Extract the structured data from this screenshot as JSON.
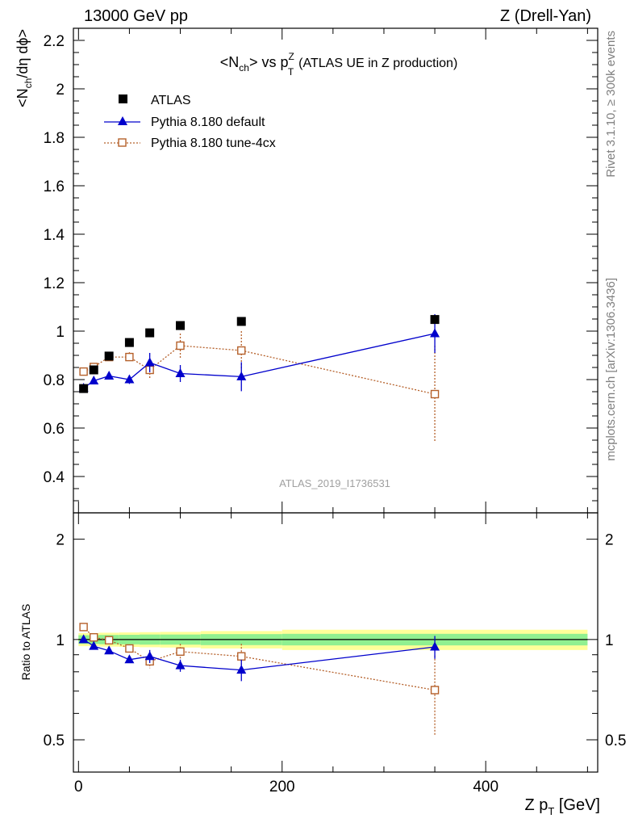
{
  "header": {
    "left": "13000 GeV pp",
    "right": "Z (Drell-Yan)"
  },
  "title": {
    "main": "<N",
    "main_sub": "ch",
    "main_rest": "> vs p",
    "pt_sup": "Z",
    "pt_sub": "T",
    "note": "(ATLAS UE in Z production)"
  },
  "side": {
    "rivet": "Rivet 3.1.10, ≥ 300k events",
    "mcplots": "mcplots.cern.ch [arXiv:1306.3436]"
  },
  "watermark": "ATLAS_2019_I1736531",
  "ylabel_top": {
    "a": "<N",
    "sub": "ch",
    "b": "/dη dϕ>"
  },
  "ylabel_bottom": "Ratio to ATLAS",
  "xlabel": {
    "a": "Z p",
    "sub": "T",
    "b": " [GeV]"
  },
  "legend": [
    "ATLAS",
    "Pythia 8.180 default",
    "Pythia 8.180 tune-4cx"
  ],
  "colors": {
    "data": "#000000",
    "default": "#0000cc",
    "tune4cx": "#b5602a",
    "band_inner": "#90f090",
    "band_outer": "#ffff99"
  },
  "chart_data": [
    {
      "type": "scatter",
      "panel": "main",
      "xlim": [
        -5,
        510
      ],
      "ylim": [
        0.25,
        2.25
      ],
      "y_ticks": [
        0.4,
        0.6,
        0.8,
        1,
        1.2,
        1.4,
        1.6,
        1.8,
        2,
        2.2
      ],
      "y_tick_labels": [
        "0.4",
        "0.6",
        "0.8",
        "1",
        "1.2",
        "1.4",
        "1.6",
        "1.8",
        "2",
        "2.2"
      ],
      "series": [
        {
          "name": "ATLAS",
          "marker": "square",
          "points": [
            {
              "x": 5,
              "y": 0.763,
              "err": 0.01
            },
            {
              "x": 15,
              "y": 0.84,
              "err": 0.01
            },
            {
              "x": 30,
              "y": 0.897,
              "err": 0.01
            },
            {
              "x": 50,
              "y": 0.953,
              "err": 0.01
            },
            {
              "x": 70,
              "y": 0.993,
              "err": 0.01
            },
            {
              "x": 100,
              "y": 1.023,
              "err": 0.01
            },
            {
              "x": 160,
              "y": 1.04,
              "err": 0.01
            },
            {
              "x": 350,
              "y": 1.048,
              "err": 0.015
            }
          ]
        },
        {
          "name": "Pythia 8.180 default",
          "marker": "triangle",
          "points": [
            {
              "x": 5,
              "y": 0.765,
              "err": 0.006
            },
            {
              "x": 15,
              "y": 0.795,
              "err": 0.008
            },
            {
              "x": 30,
              "y": 0.815,
              "err": 0.01
            },
            {
              "x": 50,
              "y": 0.8,
              "err": 0.018
            },
            {
              "x": 70,
              "y": 0.87,
              "err": 0.04
            },
            {
              "x": 100,
              "y": 0.825,
              "err": 0.035
            },
            {
              "x": 160,
              "y": 0.812,
              "err": 0.06
            },
            {
              "x": 350,
              "y": 0.99,
              "err": 0.08
            }
          ]
        },
        {
          "name": "Pythia 8.180 tune-4cx",
          "marker": "open-square",
          "points": [
            {
              "x": 5,
              "y": 0.833,
              "err": 0.01
            },
            {
              "x": 15,
              "y": 0.852,
              "err": 0.012
            },
            {
              "x": 30,
              "y": 0.893,
              "err": 0.018
            },
            {
              "x": 50,
              "y": 0.893,
              "err": 0.02
            },
            {
              "x": 70,
              "y": 0.84,
              "err": 0.04
            },
            {
              "x": 100,
              "y": 0.94,
              "err": 0.05
            },
            {
              "x": 160,
              "y": 0.92,
              "err": 0.08
            },
            {
              "x": 350,
              "y": 0.74,
              "err": 0.2
            }
          ]
        }
      ]
    },
    {
      "type": "scatter",
      "panel": "ratio",
      "xlim": [
        -5,
        510
      ],
      "ylim": [
        0.4,
        2.4
      ],
      "log_y": true,
      "y_ticks": [
        0.5,
        1,
        2
      ],
      "y_tick_labels": [
        "0.5",
        "1",
        "2"
      ],
      "x_ticks": [
        0,
        200,
        400
      ],
      "x_tick_labels": [
        "0",
        "200",
        "400"
      ],
      "bands": [
        {
          "x0": 0,
          "x1": 10,
          "inner": [
            0.97,
            1.03
          ],
          "outer": [
            0.955,
            1.045
          ]
        },
        {
          "x0": 10,
          "x1": 20,
          "inner": [
            0.97,
            1.03
          ],
          "outer": [
            0.955,
            1.045
          ]
        },
        {
          "x0": 20,
          "x1": 40,
          "inner": [
            0.968,
            1.032
          ],
          "outer": [
            0.952,
            1.048
          ]
        },
        {
          "x0": 40,
          "x1": 60,
          "inner": [
            0.967,
            1.033
          ],
          "outer": [
            0.95,
            1.05
          ]
        },
        {
          "x0": 60,
          "x1": 80,
          "inner": [
            0.965,
            1.035
          ],
          "outer": [
            0.948,
            1.052
          ]
        },
        {
          "x0": 80,
          "x1": 120,
          "inner": [
            0.965,
            1.035
          ],
          "outer": [
            0.946,
            1.054
          ]
        },
        {
          "x0": 120,
          "x1": 200,
          "inner": [
            0.962,
            1.038
          ],
          "outer": [
            0.94,
            1.06
          ]
        },
        {
          "x0": 200,
          "x1": 500,
          "inner": [
            0.96,
            1.04
          ],
          "outer": [
            0.93,
            1.07
          ]
        }
      ],
      "series": [
        {
          "name": "Pythia 8.180 default",
          "points": [
            {
              "x": 5,
              "y": 1.0,
              "err": 0.008
            },
            {
              "x": 15,
              "y": 0.955,
              "err": 0.01
            },
            {
              "x": 30,
              "y": 0.925,
              "err": 0.012
            },
            {
              "x": 50,
              "y": 0.87,
              "err": 0.02
            },
            {
              "x": 70,
              "y": 0.89,
              "err": 0.04
            },
            {
              "x": 100,
              "y": 0.835,
              "err": 0.035
            },
            {
              "x": 160,
              "y": 0.81,
              "err": 0.06
            },
            {
              "x": 350,
              "y": 0.95,
              "err": 0.075
            }
          ]
        },
        {
          "name": "Pythia 8.180 tune-4cx",
          "points": [
            {
              "x": 5,
              "y": 1.09,
              "err": 0.012
            },
            {
              "x": 15,
              "y": 1.015,
              "err": 0.014
            },
            {
              "x": 30,
              "y": 0.995,
              "err": 0.02
            },
            {
              "x": 50,
              "y": 0.94,
              "err": 0.02
            },
            {
              "x": 70,
              "y": 0.86,
              "err": 0.04
            },
            {
              "x": 100,
              "y": 0.92,
              "err": 0.05
            },
            {
              "x": 160,
              "y": 0.89,
              "err": 0.08
            },
            {
              "x": 350,
              "y": 0.705,
              "err": 0.19
            }
          ]
        }
      ]
    }
  ]
}
